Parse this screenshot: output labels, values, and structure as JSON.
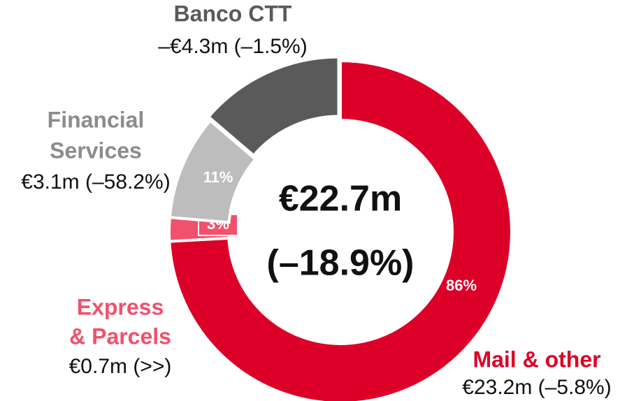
{
  "chart_data": {
    "type": "donut",
    "center_lines": [
      "€22.7m",
      "(–18.9%)"
    ],
    "segments": [
      {
        "name_lines": [
          "Mail & other"
        ],
        "amount": 23.2,
        "amount_label": "€23.2m (–5.8%)",
        "share": 86,
        "share_label": "86%",
        "color": "#dc0028"
      },
      {
        "name_lines": [
          "Express",
          "& Parcels"
        ],
        "amount": 0.7,
        "amount_label": "€0.7m (>>)",
        "share": 3,
        "share_label": "3%",
        "color": "#f2506c"
      },
      {
        "name_lines": [
          "Financial",
          "Services"
        ],
        "amount": 3.1,
        "amount_label": "€3.1m (–58.2%)",
        "share": 11,
        "share_label": "11%",
        "color": "#bdbdbd"
      },
      {
        "name_lines": [
          "Banco CTT"
        ],
        "amount": -4.3,
        "amount_label": "–€4.3m (–1.5%)",
        "share": null,
        "share_label": null,
        "color": "#5a5a5a"
      }
    ]
  }
}
